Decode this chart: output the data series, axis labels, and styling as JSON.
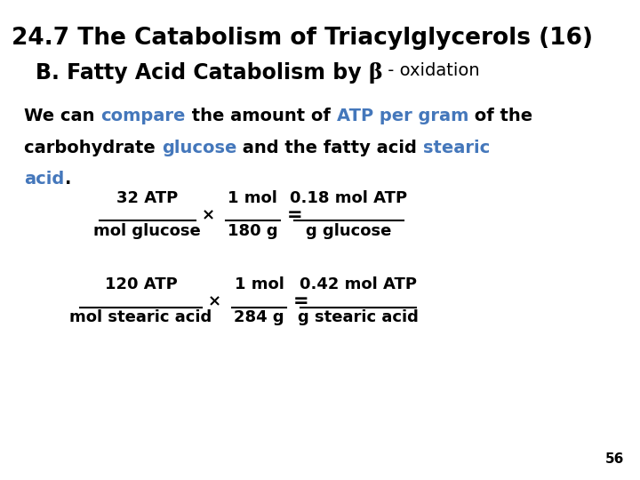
{
  "bg_color": "#ffffff",
  "text_color": "#000000",
  "blue_color": "#4477bb",
  "title1": "24.7 The Catabolism of Triacylglycerols (16)",
  "title2_part1": "B. Fatty Acid Catabolism by ",
  "title2_beta": "β",
  "title2_part2": " - oxidation",
  "eq1_num": "32 ATP",
  "eq1_den": "mol glucose",
  "eq1_mid_num": "1 mol",
  "eq1_mid_den": "180 g",
  "eq1_res_num": "0.18 mol ATP",
  "eq1_res_den": "g glucose",
  "eq2_num": "120 ATP",
  "eq2_den": "mol stearic acid",
  "eq2_mid_num": "1 mol",
  "eq2_mid_den": "284 g",
  "eq2_res_num": "0.42 mol ATP",
  "eq2_res_den": "g stearic acid",
  "page_number": "56",
  "title1_fs": 19,
  "title2_fs": 17,
  "body_fs": 14,
  "eq_fs": 13,
  "eq_fs_small": 12
}
